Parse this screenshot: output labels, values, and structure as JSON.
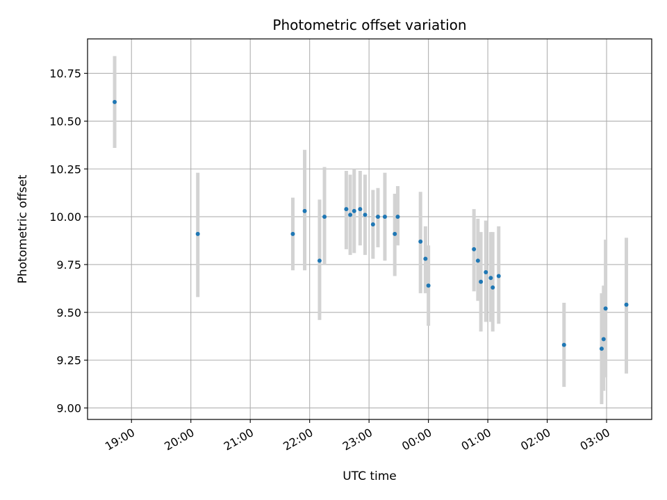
{
  "chart_data": {
    "type": "scatter",
    "title": "Photometric offset variation",
    "xlabel": "UTC time",
    "ylabel": "Photometric offset",
    "x_tick_labels": [
      "19:00",
      "20:00",
      "21:00",
      "22:00",
      "23:00",
      "00:00",
      "01:00",
      "02:00",
      "03:00"
    ],
    "y_tick_labels": [
      "9.00",
      "9.25",
      "9.50",
      "9.75",
      "10.00",
      "10.25",
      "10.50",
      "10.75"
    ],
    "ylim": [
      8.94,
      10.93
    ],
    "xlim_hours_since_1900": [
      18.26,
      27.76
    ],
    "grid": true,
    "x_tick_hours": [
      19,
      20,
      21,
      22,
      23,
      24,
      25,
      26,
      27
    ],
    "y_tick_values": [
      9.0,
      9.25,
      9.5,
      9.75,
      10.0,
      10.25,
      10.5,
      10.75
    ],
    "colors": {
      "points": "#1f77b4",
      "errorbars": "#d3d3d3",
      "grid": "#b0b0b0"
    },
    "series": [
      {
        "points": [
          {
            "time": "18:43",
            "y": 10.6,
            "ylow": 10.36,
            "yhigh": 10.84
          },
          {
            "time": "20:07",
            "y": 9.91,
            "ylow": 9.58,
            "yhigh": 10.23
          },
          {
            "time": "21:43",
            "y": 9.91,
            "ylow": 9.72,
            "yhigh": 10.1
          },
          {
            "time": "21:55",
            "y": 10.03,
            "ylow": 9.72,
            "yhigh": 10.35
          },
          {
            "time": "22:10",
            "y": 9.77,
            "ylow": 9.46,
            "yhigh": 10.09
          },
          {
            "time": "22:15",
            "y": 10.0,
            "ylow": 9.75,
            "yhigh": 10.26
          },
          {
            "time": "22:37",
            "y": 10.04,
            "ylow": 9.83,
            "yhigh": 10.24
          },
          {
            "time": "22:41",
            "y": 10.01,
            "ylow": 9.8,
            "yhigh": 10.22
          },
          {
            "time": "22:45",
            "y": 10.03,
            "ylow": 9.81,
            "yhigh": 10.25
          },
          {
            "time": "22:51",
            "y": 10.04,
            "ylow": 9.85,
            "yhigh": 10.24
          },
          {
            "time": "22:56",
            "y": 10.01,
            "ylow": 9.8,
            "yhigh": 10.22
          },
          {
            "time": "23:04",
            "y": 9.96,
            "ylow": 9.78,
            "yhigh": 10.14
          },
          {
            "time": "23:09",
            "y": 10.0,
            "ylow": 9.84,
            "yhigh": 10.15
          },
          {
            "time": "23:16",
            "y": 10.0,
            "ylow": 9.77,
            "yhigh": 10.23
          },
          {
            "time": "23:26",
            "y": 9.91,
            "ylow": 9.69,
            "yhigh": 10.12
          },
          {
            "time": "23:29",
            "y": 10.0,
            "ylow": 9.85,
            "yhigh": 10.16
          },
          {
            "time": "23:52",
            "y": 9.87,
            "ylow": 9.6,
            "yhigh": 10.13
          },
          {
            "time": "23:57",
            "y": 9.78,
            "ylow": 9.6,
            "yhigh": 9.95
          },
          {
            "time": "00:00",
            "y": 9.64,
            "ylow": 9.43,
            "yhigh": 9.85
          },
          {
            "time": "00:46",
            "y": 9.83,
            "ylow": 9.61,
            "yhigh": 10.04
          },
          {
            "time": "00:50",
            "y": 9.77,
            "ylow": 9.56,
            "yhigh": 9.99
          },
          {
            "time": "00:53",
            "y": 9.66,
            "ylow": 9.4,
            "yhigh": 9.92
          },
          {
            "time": "00:58",
            "y": 9.71,
            "ylow": 9.45,
            "yhigh": 9.98
          },
          {
            "time": "01:03",
            "y": 9.68,
            "ylow": 9.45,
            "yhigh": 9.92
          },
          {
            "time": "01:05",
            "y": 9.63,
            "ylow": 9.4,
            "yhigh": 9.92
          },
          {
            "time": "01:11",
            "y": 9.69,
            "ylow": 9.44,
            "yhigh": 9.95
          },
          {
            "time": "02:17",
            "y": 9.33,
            "ylow": 9.11,
            "yhigh": 9.55
          },
          {
            "time": "02:55",
            "y": 9.31,
            "ylow": 9.02,
            "yhigh": 9.6
          },
          {
            "time": "02:57",
            "y": 9.36,
            "ylow": 9.09,
            "yhigh": 9.64
          },
          {
            "time": "02:59",
            "y": 9.52,
            "ylow": 9.16,
            "yhigh": 9.88
          },
          {
            "time": "03:20",
            "y": 9.54,
            "ylow": 9.18,
            "yhigh": 9.89
          }
        ]
      }
    ]
  }
}
